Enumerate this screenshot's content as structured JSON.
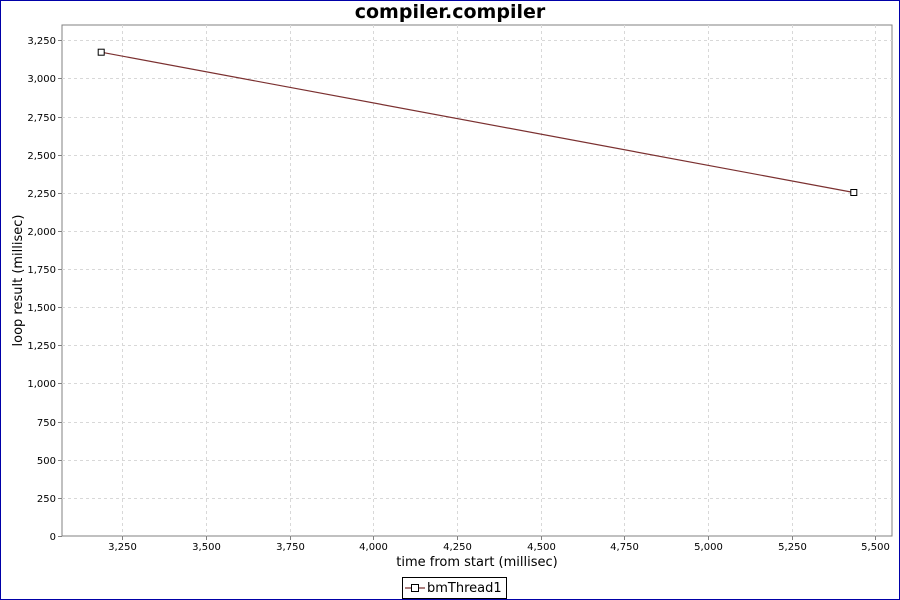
{
  "chart_data": {
    "type": "line",
    "title": "compiler.compiler",
    "xlabel": "time from start (millisec)",
    "ylabel": "loop result (millisec)",
    "xlim": [
      3070,
      5550
    ],
    "ylim": [
      0,
      3350
    ],
    "xticks": [
      3250,
      3500,
      3750,
      4000,
      4250,
      4500,
      4750,
      5000,
      5250,
      5500
    ],
    "xtick_labels": [
      "3,250",
      "3,500",
      "3,750",
      "4,000",
      "4,250",
      "4,500",
      "4,750",
      "5,000",
      "5,250",
      "5,500"
    ],
    "yticks": [
      0,
      250,
      500,
      750,
      1000,
      1250,
      1500,
      1750,
      2000,
      2250,
      2500,
      2750,
      3000,
      3250
    ],
    "ytick_labels": [
      "0",
      "250",
      "500",
      "750",
      "1,000",
      "1,250",
      "1,500",
      "1,750",
      "2,000",
      "2,250",
      "2,500",
      "2,750",
      "3,000",
      "3,250"
    ],
    "grid": true,
    "legend_position": "bottom-center",
    "series": [
      {
        "name": "bmThread1",
        "color": "#7b3030",
        "marker": "square",
        "x": [
          3187,
          5436
        ],
        "y": [
          3172,
          2252
        ]
      }
    ]
  }
}
